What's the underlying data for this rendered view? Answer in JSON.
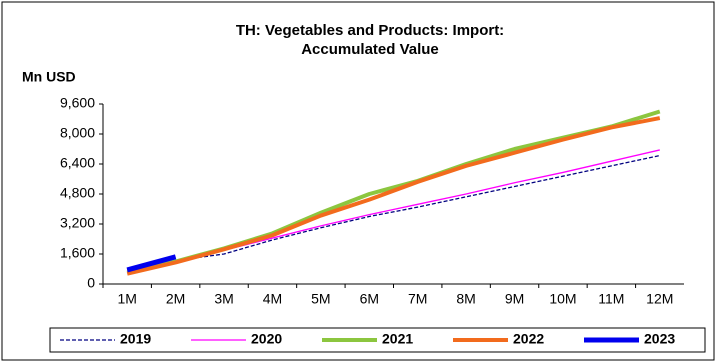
{
  "chart_data": {
    "type": "line",
    "title": [
      "TH: Vegetables and Products: Import:",
      "Accumulated Value"
    ],
    "y_label": "Mn USD",
    "categories": [
      "1M",
      "2M",
      "3M",
      "4M",
      "5M",
      "6M",
      "7M",
      "8M",
      "9M",
      "10M",
      "11M",
      "12M"
    ],
    "ylim": [
      0,
      9600
    ],
    "yticks": [
      0,
      {
        "value": 1600,
        "label": "1,600"
      },
      {
        "value": 3200,
        "label": "3,200"
      },
      {
        "value": 4800,
        "label": "4,800"
      },
      {
        "value": 6400,
        "label": "6,400"
      },
      {
        "value": 8000,
        "label": "8,000"
      },
      {
        "value": 9600,
        "label": "9,600"
      }
    ],
    "legend": "bottom",
    "series": [
      {
        "name": "2019",
        "color": "#000080",
        "dashed": true,
        "values": [
          750,
          1250,
          1600,
          2350,
          3000,
          3600,
          4100,
          4650,
          5200,
          5750,
          6300,
          6850
        ]
      },
      {
        "name": "2020",
        "color": "#ff00ff",
        "values": [
          700,
          1250,
          1800,
          2450,
          3100,
          3700,
          4250,
          4800,
          5400,
          5950,
          6550,
          7150
        ]
      },
      {
        "name": "2021",
        "color": "#8cc63f",
        "values": [
          600,
          1200,
          1900,
          2700,
          3800,
          4800,
          5500,
          6400,
          7200,
          7800,
          8400,
          9200
        ]
      },
      {
        "name": "2022",
        "color": "#f26b1d",
        "values": [
          550,
          1150,
          1850,
          2600,
          3650,
          4500,
          5450,
          6300,
          7000,
          7700,
          8350,
          8850
        ]
      },
      {
        "name": "2023",
        "color": "#0000ee",
        "values": [
          750,
          1450,
          null,
          null,
          null,
          null,
          null,
          null,
          null,
          null,
          null,
          null
        ]
      }
    ]
  }
}
